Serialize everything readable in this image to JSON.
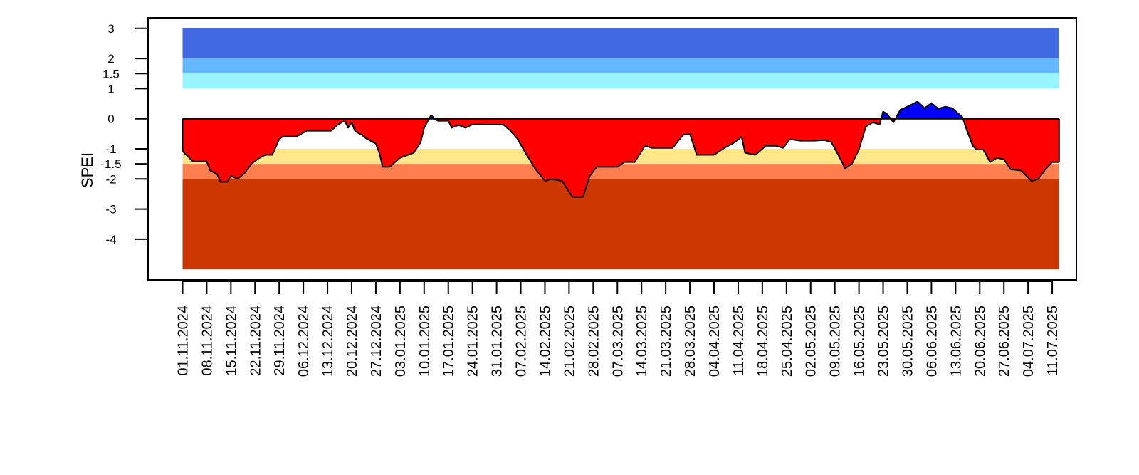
{
  "chart_data": {
    "type": "area",
    "y_label": "SPEI",
    "xlim": [
      "22.10.2024",
      "18.07.2025"
    ],
    "xticks": [
      "01.11.2024",
      "08.11.2024",
      "15.11.2024",
      "22.11.2024",
      "29.11.2024",
      "06.12.2024",
      "13.12.2024",
      "20.12.2024",
      "27.12.2024",
      "03.01.2025",
      "10.01.2025",
      "17.01.2025",
      "24.01.2025",
      "31.01.2025",
      "07.02.2025",
      "14.02.2025",
      "21.02.2025",
      "28.02.2025",
      "07.03.2025",
      "14.03.2025",
      "21.03.2025",
      "28.03.2025",
      "04.04.2025",
      "11.04.2025",
      "18.04.2025",
      "25.04.2025",
      "02.05.2025",
      "09.05.2025",
      "16.05.2025",
      "23.05.2025",
      "30.05.2025",
      "06.06.2025",
      "13.06.2025",
      "20.06.2025",
      "27.06.2025",
      "04.07.2025",
      "11.07.2025"
    ],
    "ylim": [
      -5.35,
      3.35
    ],
    "yticks": [
      3,
      2,
      1.5,
      1,
      0,
      -1,
      -1.5,
      -2,
      -3,
      -4
    ],
    "bands": [
      {
        "from": 3,
        "to": 2,
        "color": "#4169e1"
      },
      {
        "from": 2,
        "to": 1.5,
        "color": "#63b8ff"
      },
      {
        "from": 1.5,
        "to": 1,
        "color": "#98f5ff"
      },
      {
        "from": -1,
        "to": -1.5,
        "color": "#ffe78a"
      },
      {
        "from": -1.5,
        "to": -2,
        "color": "#ff7f50"
      },
      {
        "from": -2,
        "to": -5,
        "color": "#cd3700"
      }
    ],
    "positive_color": "#0000ff",
    "negative_color": "#ff0000",
    "x": [
      "01.11.2024",
      "04.11.2024",
      "08.11.2024",
      "09.11.2024",
      "11.11.2024",
      "12.11.2024",
      "14.11.2024",
      "15.11.2024",
      "17.11.2024",
      "19.11.2024",
      "21.11.2024",
      "23.11.2024",
      "25.11.2024",
      "27.11.2024",
      "29.11.2024",
      "30.11.2024",
      "04.12.2024",
      "07.12.2024",
      "14.12.2024",
      "16.12.2024",
      "18.12.2024",
      "19.12.2024",
      "20.12.2024",
      "21.12.2024",
      "23.12.2024",
      "24.12.2024",
      "27.12.2024",
      "28.12.2024",
      "29.12.2024",
      "31.12.2024",
      "03.01.2025",
      "07.01.2025",
      "09.01.2025",
      "10.01.2025",
      "12.01.2025",
      "13.01.2025",
      "14.01.2025",
      "17.01.2025",
      "18.01.2025",
      "20.01.2025",
      "22.01.2025",
      "24.01.2025",
      "02.02.2025",
      "04.02.2025",
      "06.02.2025",
      "08.02.2025",
      "11.02.2025",
      "14.02.2025",
      "16.02.2025",
      "19.02.2025",
      "21.02.2025",
      "22.02.2025",
      "25.02.2025",
      "27.02.2025",
      "01.03.2025",
      "07.03.2025",
      "09.03.2025",
      "12.03.2025",
      "15.03.2025",
      "17.03.2025",
      "23.03.2025",
      "26.03.2025",
      "28.03.2025",
      "30.03.2025",
      "04.04.2025",
      "07.04.2025",
      "10.04.2025",
      "12.04.2025",
      "13.04.2025",
      "16.04.2025",
      "19.04.2025",
      "22.04.2025",
      "24.04.2025",
      "26.04.2025",
      "29.04.2025",
      "03.05.2025",
      "06.05.2025",
      "08.05.2025",
      "10.05.2025",
      "12.05.2025",
      "14.05.2025",
      "16.05.2025",
      "18.05.2025",
      "20.05.2025",
      "22.05.2025",
      "23.05.2025",
      "24.05.2025",
      "26.05.2025",
      "28.05.2025",
      "30.05.2025",
      "02.06.2025",
      "04.06.2025",
      "06.06.2025",
      "08.06.2025",
      "10.06.2025",
      "12.06.2025",
      "15.06.2025",
      "16.06.2025",
      "18.06.2025",
      "19.06.2025",
      "21.06.2025",
      "23.06.2025",
      "25.06.2025",
      "27.06.2025",
      "29.06.2025",
      "02.07.2025",
      "05.07.2025",
      "07.07.2025",
      "09.07.2025",
      "11.07.2025",
      "13.07.2025"
    ],
    "values": [
      -1.08,
      -1.42,
      -1.42,
      -1.72,
      -1.84,
      -2.1,
      -2.1,
      -1.9,
      -2.0,
      -1.8,
      -1.49,
      -1.32,
      -1.2,
      -1.2,
      -0.68,
      -0.59,
      -0.59,
      -0.4,
      -0.4,
      -0.19,
      -0.07,
      -0.3,
      -0.12,
      -0.42,
      -0.54,
      -0.64,
      -0.83,
      -1.13,
      -1.6,
      -1.6,
      -1.3,
      -1.13,
      -0.78,
      -0.3,
      0.12,
      0,
      -0.07,
      -0.07,
      -0.3,
      -0.21,
      -0.3,
      -0.19,
      -0.2,
      -0.4,
      -0.66,
      -1.06,
      -1.63,
      -2.07,
      -2.0,
      -2.07,
      -2.43,
      -2.6,
      -2.6,
      -1.9,
      -1.6,
      -1.6,
      -1.44,
      -1.44,
      -0.9,
      -0.97,
      -0.97,
      -0.54,
      -0.5,
      -1.2,
      -1.2,
      -0.97,
      -0.78,
      -0.6,
      -1.13,
      -1.2,
      -0.9,
      -0.9,
      -0.97,
      -0.68,
      -0.73,
      -0.73,
      -0.71,
      -0.78,
      -1.2,
      -1.65,
      -1.49,
      -1.02,
      -0.26,
      -0.12,
      -0.19,
      0.24,
      0.17,
      -0.12,
      0.3,
      0.4,
      0.57,
      0.35,
      0.52,
      0.33,
      0.4,
      0.35,
      0.05,
      -0.3,
      -0.9,
      -1.02,
      -1.02,
      -1.44,
      -1.3,
      -1.35,
      -1.68,
      -1.72,
      -2.07,
      -2.0,
      -1.68,
      -1.44,
      -1.44
    ]
  }
}
